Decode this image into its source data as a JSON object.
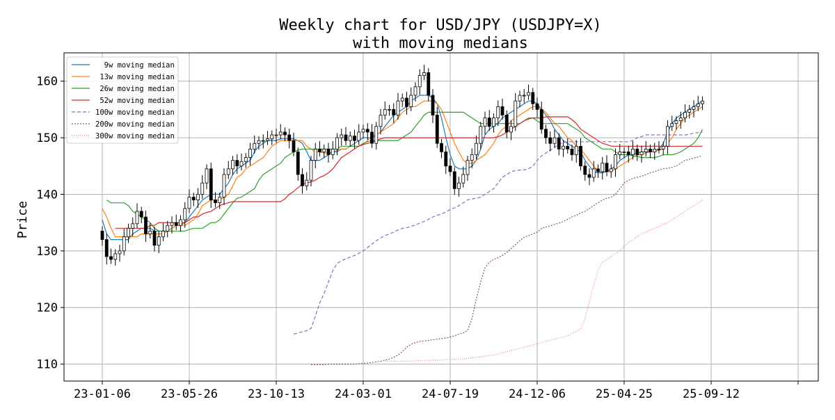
{
  "chart_data": {
    "type": "candlestick",
    "title_line1": "Weekly chart for USD/JPY (USDJPY=X)",
    "title_line2": "with moving medians",
    "ylabel": "Price",
    "xlabel": "",
    "ylim": [
      107,
      165
    ],
    "yticks": [
      110,
      120,
      130,
      140,
      150,
      160
    ],
    "xtick_labels": [
      "23-01-06",
      "23-05-26",
      "23-10-13",
      "24-03-01",
      "24-07-19",
      "24-12-06",
      "25-04-25",
      "25-09-12"
    ],
    "xtick_index": [
      0,
      20,
      40,
      60,
      80,
      100,
      120,
      140
    ],
    "grid": true,
    "legend_placement": "top-left",
    "colors": {
      "up_candle": "#ffffff",
      "down_candle": "#000000",
      "ma9": "#1f77b4",
      "ma13": "#ff7f0e",
      "ma26": "#2ca02c",
      "ma52": "#d62728",
      "ma100": "#9467bd",
      "ma200": "#8c564b",
      "ma300": "#e377c2",
      "grid": "#b0b0b0"
    },
    "close": [
      132,
      129,
      128.5,
      129.5,
      130,
      132.5,
      134,
      134.8,
      137,
      136,
      133,
      133.5,
      131,
      132.5,
      133.5,
      134.5,
      135,
      134.5,
      135.5,
      137.5,
      139.5,
      139,
      140,
      142,
      144.5,
      139,
      138.5,
      139.5,
      143.5,
      144.5,
      146,
      145,
      145.8,
      146.5,
      148,
      149,
      149.5,
      149.5,
      149.8,
      150.5,
      150.5,
      151,
      150.5,
      149.5,
      147.5,
      143.5,
      141.5,
      142.5,
      146,
      148,
      147.5,
      148,
      147,
      148,
      150,
      150.5,
      149.5,
      150.3,
      149.5,
      151,
      151.5,
      151,
      149,
      152,
      154,
      155,
      155,
      154,
      156.5,
      157,
      155.5,
      157.5,
      159,
      161,
      161.5,
      157.5,
      154,
      149,
      147.5,
      145,
      144,
      141,
      142,
      143.5,
      146,
      147,
      149,
      152,
      153.5,
      152,
      153.5,
      155.5,
      154,
      151,
      152,
      156.5,
      157.5,
      157.5,
      158,
      156,
      155,
      151.5,
      150,
      149,
      150,
      148,
      148.5,
      148,
      147,
      148.5,
      145,
      143.5,
      143,
      144.5,
      144,
      145.5,
      144,
      144.5,
      147,
      147.5,
      147.5,
      147,
      148,
      147,
      147.5,
      148,
      147.5,
      148,
      148,
      148.5,
      152,
      152.5,
      153,
      153.5,
      154.5,
      155,
      155.5,
      156,
      156.5
    ],
    "ma9": [
      135.5,
      133,
      132,
      132,
      132,
      132,
      132,
      133,
      133.5,
      134,
      134,
      134,
      133.5,
      133.5,
      133.5,
      133.5,
      134,
      134.5,
      134.5,
      135,
      136,
      137,
      138,
      139,
      139.5,
      140,
      140,
      140,
      141,
      142,
      143.5,
      144.5,
      145,
      145.5,
      146,
      147.5,
      148.5,
      149,
      149.5,
      149.5,
      149.5,
      149.8,
      149.8,
      149.8,
      149.8,
      149.5,
      149,
      147.5,
      146,
      146,
      146,
      146.5,
      147,
      147.5,
      147.5,
      148,
      148,
      148.5,
      149,
      149.5,
      150,
      150,
      150,
      150.5,
      151,
      152,
      153,
      154,
      154.5,
      155,
      155.5,
      156.5,
      157,
      157.5,
      157.5,
      157.5,
      157,
      156,
      153.5,
      150,
      147,
      145,
      144.5,
      144.5,
      144.5,
      145,
      146,
      148,
      150.5,
      151.5,
      152,
      152.5,
      153.5,
      154,
      154.5,
      155,
      155.5,
      156,
      156.5,
      156.5,
      156,
      155,
      154,
      153,
      151.5,
      150.5,
      149.5,
      149,
      148.5,
      148,
      147.5,
      146,
      145,
      144,
      143.8,
      143.8,
      144,
      144.5,
      145,
      146,
      146.5,
      147,
      147,
      147.3,
      147.5,
      147.5,
      147.5,
      147.5,
      148,
      149,
      151,
      152.5,
      153.5,
      154,
      154.5,
      155,
      155.5,
      156,
      156.5
    ],
    "ma13": [
      137.5,
      136,
      134,
      132.5,
      132.5,
      132.5,
      132.5,
      132.5,
      132.5,
      133,
      133,
      133,
      133,
      133,
      133,
      133.5,
      134,
      134.5,
      134.5,
      134.5,
      135,
      135.5,
      136.5,
      138,
      138.5,
      139,
      139,
      139,
      139.5,
      140,
      141.5,
      143,
      143.5,
      144.5,
      145,
      145.5,
      146,
      146.5,
      147.5,
      148.5,
      149,
      149.5,
      149.5,
      149.5,
      149.5,
      149.5,
      149.5,
      148.5,
      148,
      147.5,
      147.5,
      147.3,
      147.3,
      147.5,
      147.8,
      148,
      148,
      148.5,
      148.5,
      148.5,
      148.8,
      149.5,
      150.5,
      150.5,
      151,
      151.5,
      152,
      152.5,
      153.5,
      154.5,
      155,
      155.5,
      155.5,
      156,
      156.5,
      156.5,
      156.5,
      156,
      155,
      153,
      151,
      149,
      147.5,
      146,
      145.5,
      145.5,
      146,
      146.5,
      147,
      148,
      149,
      150.5,
      151.5,
      152,
      153,
      153.5,
      154,
      154.5,
      155,
      155.5,
      155.5,
      155,
      154.5,
      153.5,
      152.5,
      152,
      151,
      150,
      149.5,
      148.5,
      148,
      147,
      146,
      145,
      144,
      144,
      144,
      144,
      144.5,
      145,
      145.5,
      146,
      146.5,
      147,
      147,
      147.3,
      147.5,
      147.5,
      147.8,
      148,
      149,
      150,
      151.5,
      152.5,
      153.5,
      154,
      154.5,
      155,
      155.5
    ],
    "ma26": [
      139,
      138.5,
      138.5,
      138.5,
      138.5,
      138,
      137,
      136.5,
      136,
      135.5,
      135,
      134,
      133.5,
      133.5,
      133.5,
      133.5,
      133.5,
      133.5,
      133.5,
      133.8,
      134,
      134,
      134,
      134.5,
      135,
      135,
      135.5,
      136.5,
      137.5,
      138.5,
      139.3,
      139.5,
      140,
      140.5,
      141,
      142.5,
      143.5,
      144,
      144.5,
      145,
      145.5,
      146.5,
      147,
      147.5,
      147.8,
      148,
      148,
      148,
      148,
      148,
      148,
      148,
      148,
      148,
      148.5,
      148.5,
      148.5,
      148.5,
      148.5,
      149,
      149.3,
      149.5,
      149.5,
      149.5,
      149.5,
      149.5,
      149.5,
      149.5,
      150,
      150.5,
      151,
      152,
      153,
      154,
      154.5,
      154.5,
      154.5,
      154.5,
      154.5,
      154.5,
      154.5,
      154.5,
      154.5,
      154,
      153.5,
      153,
      152.5,
      152.5,
      152.5,
      152.5,
      152.5,
      152.5,
      152.5,
      152.5,
      152.5,
      152.5,
      153,
      153.5,
      153.5,
      153,
      152.5,
      152.5,
      152.5,
      152.5,
      152.5,
      152.5,
      152.5,
      152,
      151.5,
      151,
      150,
      149.5,
      149,
      148.5,
      148,
      148,
      148,
      147.5,
      147,
      147,
      147,
      146.8,
      146.7,
      146.5,
      146.5,
      146.5,
      146.5,
      146.7,
      147,
      147,
      147,
      147.2,
      147.5,
      148,
      148.5,
      149,
      150,
      151.5
    ],
    "ma52": [
      134,
      134,
      134,
      134,
      134,
      134,
      134,
      134,
      134.5,
      134.5,
      135,
      135,
      135,
      135,
      135,
      135,
      135,
      135.5,
      136,
      136,
      136.5,
      136.8,
      137,
      137.5,
      138,
      138.3,
      138.5,
      138.7,
      138.7,
      138.7,
      138.7,
      138.7,
      138.7,
      138.7,
      138.7,
      138.7,
      138.7,
      138.7,
      138.7,
      139.2,
      140,
      140.5,
      141.2,
      141.8,
      142,
      142.2,
      142.5,
      143,
      143.3,
      143.8,
      144.5,
      145.5,
      146.5,
      147,
      147.5,
      148,
      148.5,
      148.8,
      149,
      149.2,
      149.5,
      149.8,
      150,
      150,
      150,
      150,
      150,
      150,
      150,
      150,
      150,
      150,
      150,
      150,
      150,
      150,
      150,
      150,
      150,
      150,
      150,
      150,
      150,
      150,
      150,
      150,
      150,
      150,
      150.2,
      150.5,
      151,
      151.5,
      152,
      152.5,
      153,
      153.3,
      153.5,
      153.5,
      153.5,
      153.7,
      153.7,
      153.7,
      153.7,
      153.7,
      153.7,
      153.2,
      152.5,
      151.5,
      151,
      150.5,
      150,
      149.5,
      149,
      148.8,
      148.5,
      148.5,
      148.5,
      148.5,
      148.5,
      148.5,
      148.5,
      148.5,
      148.5,
      148.5,
      148.5,
      148.5,
      148.5,
      148.5,
      148.5,
      148.5,
      148.5,
      148.5,
      148.5,
      148.5,
      148.5,
      148.5
    ],
    "ma100": [
      115.3,
      115.5,
      115.7,
      115.9,
      116.3,
      118.5,
      120.8,
      122.5,
      124.5,
      126.5,
      127.8,
      128.3,
      128.6,
      128.9,
      129.2,
      129.6,
      130,
      130.6,
      131.2,
      131.8,
      132.3,
      132.7,
      133,
      133.3,
      133.7,
      134,
      134.1,
      134.3,
      134.6,
      134.9,
      135.2,
      135.6,
      136,
      136.3,
      136.5,
      136.9,
      137.3,
      137.6,
      138,
      138.5,
      139,
      139.2,
      139.3,
      139.5,
      140,
      140.5,
      141,
      142,
      143,
      143.5,
      144,
      144.2,
      144.3,
      144.3,
      144.5,
      145,
      146,
      146.8,
      147.3,
      147.8,
      148.3,
      148.8,
      149.2,
      149.3,
      149.3,
      149.3,
      149.3,
      149.3,
      149.3,
      149.3,
      149.3,
      149.3,
      149.3,
      149.3,
      149.3,
      149.3,
      149.3,
      149.3,
      149.5,
      150,
      150.2,
      150.5,
      150.5,
      150.5,
      150.5,
      150.5,
      150.5,
      150.5,
      150.5,
      150.5,
      150.5,
      150.6,
      150.8,
      150.9,
      151
    ],
    "ma200": [
      109.9,
      109.9,
      109.9,
      109.9,
      110,
      110,
      110,
      110,
      110,
      110,
      110,
      110.1,
      110.1,
      110.2,
      110.3,
      110.4,
      110.5,
      110.7,
      110.9,
      111.2,
      111.6,
      112.2,
      113,
      113.5,
      113.8,
      114,
      114.1,
      114.2,
      114.3,
      114.4,
      114.5,
      114.6,
      114.8,
      115,
      115.3,
      115.5,
      116,
      118,
      121.5,
      124.5,
      127,
      128,
      128.5,
      128.8,
      129.2,
      129.7,
      130.4,
      131.1,
      131.8,
      132.4,
      132.7,
      133,
      133.3,
      134,
      134.2,
      134.4,
      134.7,
      134.9,
      135.2,
      135.6,
      136,
      136.3,
      136.7,
      137,
      137.5,
      138,
      138.5,
      139,
      139.3,
      139.5,
      140,
      141,
      142,
      142.5,
      142.8,
      143,
      143.2,
      143.5,
      143.8,
      144,
      144.3,
      144.5,
      144.6,
      144.8,
      145,
      145.5,
      146,
      146.2,
      146.4,
      146.6,
      146.8
    ],
    "ma300": [
      110.5,
      110.5,
      110.5,
      110.5,
      110.5,
      110.5,
      110.5,
      110.6,
      110.6,
      110.6,
      110.6,
      110.7,
      110.7,
      110.7,
      110.8,
      110.8,
      110.8,
      110.9,
      110.9,
      111,
      111.1,
      111.2,
      111.3,
      111.4,
      111.5,
      111.6,
      111.8,
      112,
      112.2,
      112.4,
      112.6,
      112.8,
      113,
      113.2,
      113.4,
      113.6,
      113.8,
      114,
      114.2,
      114.4,
      114.6,
      114.8,
      115,
      115.4,
      115.8,
      116.2,
      118,
      121,
      124,
      126.5,
      128,
      128.5,
      129,
      129.5,
      130,
      130.8,
      131.5,
      132,
      132.5,
      133,
      133.3,
      133.7,
      134,
      134.3,
      134.7,
      135,
      135.5,
      136,
      136.5,
      137,
      137.5,
      138,
      138.5,
      139
    ]
  },
  "legend": [
    {
      "label": "  9w moving median",
      "key": "ma9",
      "dash": ""
    },
    {
      "label": " 13w moving median",
      "key": "ma13",
      "dash": ""
    },
    {
      "label": " 26w moving median",
      "key": "ma26",
      "dash": ""
    },
    {
      "label": " 52w moving median",
      "key": "ma52",
      "dash": ""
    },
    {
      "label": "100w moving median",
      "key": "ma100",
      "dash": "5,3"
    },
    {
      "label": "200w moving median",
      "key": "ma200",
      "dash": "2,2"
    },
    {
      "label": "300w moving median",
      "key": "ma300",
      "dash": "1,2"
    }
  ]
}
